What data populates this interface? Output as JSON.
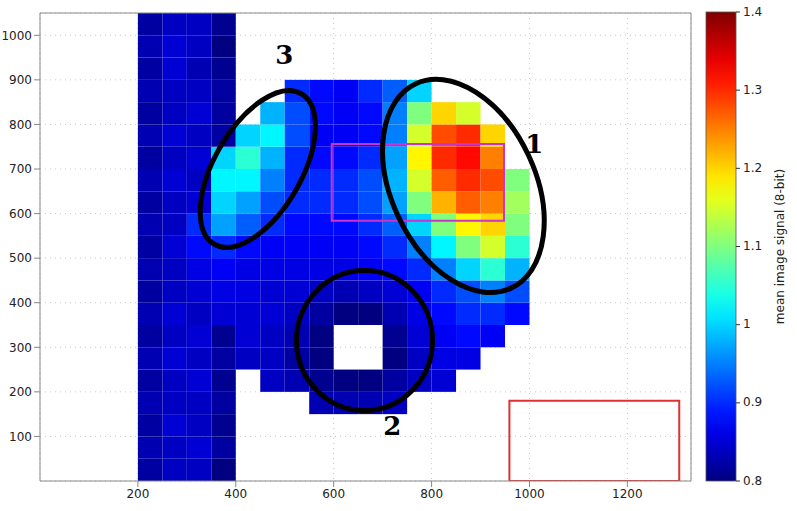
{
  "chart_data": {
    "type": "heatmap",
    "xlim": [
      0,
      1330
    ],
    "ylim": [
      0,
      1050
    ],
    "xticks": [
      200,
      400,
      600,
      800,
      1000,
      1200
    ],
    "yticks": [
      100,
      200,
      300,
      400,
      500,
      600,
      700,
      800,
      900,
      1000
    ],
    "grid": true,
    "tick_labels": true,
    "cells": {
      "x_edges": [
        200,
        250,
        300,
        350,
        400,
        450,
        500,
        550,
        600,
        650,
        700,
        750,
        800,
        850,
        900,
        950,
        1000,
        1050,
        1100
      ],
      "y_edges": [
        0,
        50,
        100,
        150,
        200,
        250,
        300,
        350,
        400,
        450,
        500,
        550,
        600,
        650,
        700,
        750,
        800,
        850,
        900,
        950,
        1000,
        1050
      ],
      "values": [
        [
          0.82,
          0.84,
          0.84,
          0.8,
          null,
          null,
          null,
          null,
          null,
          null,
          null,
          null,
          null,
          null,
          null,
          null,
          null,
          null
        ],
        [
          0.83,
          0.84,
          0.85,
          0.82,
          null,
          null,
          null,
          null,
          null,
          null,
          null,
          null,
          null,
          null,
          null,
          null,
          null,
          null
        ],
        [
          0.82,
          0.85,
          0.84,
          0.81,
          null,
          null,
          null,
          null,
          null,
          null,
          null,
          null,
          null,
          null,
          null,
          null,
          null,
          null
        ],
        [
          0.83,
          0.84,
          0.84,
          0.82,
          null,
          null,
          null,
          0.83,
          0.83,
          0.83,
          0.84,
          null,
          null,
          null,
          null,
          null,
          null,
          null
        ],
        [
          0.82,
          0.84,
          0.85,
          0.81,
          null,
          0.84,
          0.83,
          0.81,
          0.8,
          0.8,
          0.82,
          0.84,
          0.85,
          null,
          null,
          null,
          null,
          null
        ],
        [
          0.83,
          0.85,
          0.84,
          0.82,
          0.84,
          0.84,
          0.82,
          0.8,
          null,
          null,
          0.8,
          0.84,
          0.86,
          0.86,
          null,
          null,
          null,
          null
        ],
        [
          0.82,
          0.84,
          0.85,
          0.81,
          0.85,
          0.84,
          0.83,
          0.8,
          null,
          null,
          0.81,
          0.85,
          0.87,
          0.88,
          0.87,
          null,
          null,
          null
        ],
        [
          0.83,
          0.85,
          0.84,
          0.85,
          0.85,
          0.85,
          0.84,
          0.82,
          0.8,
          0.8,
          0.83,
          0.86,
          0.88,
          0.9,
          0.9,
          0.88,
          null,
          null
        ],
        [
          0.82,
          0.84,
          0.85,
          0.86,
          0.86,
          0.85,
          0.85,
          0.84,
          0.83,
          0.84,
          0.85,
          0.87,
          0.9,
          0.92,
          0.95,
          0.92,
          null,
          null
        ],
        [
          0.83,
          0.84,
          0.86,
          0.87,
          0.86,
          0.86,
          0.86,
          0.86,
          0.86,
          0.87,
          0.88,
          0.9,
          0.95,
          1.0,
          1.05,
          0.98,
          null,
          null
        ],
        [
          0.82,
          0.85,
          0.88,
          0.9,
          0.88,
          0.87,
          0.87,
          0.87,
          0.87,
          0.88,
          0.9,
          0.95,
          1.02,
          1.1,
          1.15,
          1.05,
          null,
          null
        ],
        [
          0.83,
          0.84,
          0.9,
          0.97,
          0.93,
          0.9,
          0.88,
          0.88,
          0.88,
          0.9,
          0.93,
          1.0,
          1.1,
          1.18,
          1.2,
          1.1,
          null,
          null
        ],
        [
          0.82,
          0.84,
          0.85,
          1.0,
          0.97,
          0.92,
          0.9,
          0.9,
          0.9,
          0.92,
          0.97,
          1.1,
          1.22,
          1.27,
          1.25,
          1.12,
          null,
          null
        ],
        [
          0.83,
          0.85,
          0.84,
          1.02,
          1.02,
          0.95,
          0.9,
          0.9,
          0.9,
          0.92,
          0.98,
          1.15,
          1.27,
          1.3,
          1.28,
          1.1,
          null,
          null
        ],
        [
          0.82,
          0.84,
          0.85,
          1.0,
          1.05,
          0.98,
          0.9,
          0.88,
          0.88,
          0.9,
          0.97,
          1.18,
          1.3,
          1.32,
          1.25,
          null,
          null,
          null
        ],
        [
          0.83,
          0.85,
          0.84,
          0.82,
          1.0,
          1.02,
          0.92,
          0.87,
          0.87,
          0.88,
          0.95,
          1.15,
          1.28,
          1.3,
          1.2,
          null,
          null,
          null
        ],
        [
          0.82,
          0.84,
          0.85,
          0.82,
          null,
          0.98,
          0.92,
          0.88,
          0.87,
          0.88,
          0.95,
          1.1,
          1.2,
          1.15,
          null,
          null,
          null,
          null
        ],
        [
          0.83,
          0.84,
          0.84,
          0.82,
          null,
          null,
          0.9,
          0.88,
          0.87,
          0.9,
          0.93,
          1.0,
          null,
          null,
          null,
          null,
          null,
          null
        ],
        [
          0.82,
          0.85,
          0.83,
          0.81,
          null,
          null,
          null,
          null,
          null,
          null,
          null,
          null,
          null,
          null,
          null,
          null,
          null,
          null
        ],
        [
          0.83,
          0.85,
          0.84,
          0.8,
          null,
          null,
          null,
          null,
          null,
          null,
          null,
          null,
          null,
          null,
          null,
          null,
          null,
          null
        ],
        [
          0.82,
          0.84,
          0.84,
          0.81,
          null,
          null,
          null,
          null,
          null,
          null,
          null,
          null,
          null,
          null,
          null,
          null,
          null,
          null
        ]
      ]
    },
    "colorbar": {
      "label": "mean image signal (8-bit)",
      "range": [
        0.8,
        1.4
      ],
      "ticks": [
        0.8,
        0.9,
        1,
        1.1,
        1.2,
        1.3,
        1.4
      ]
    },
    "regions": [
      {
        "label": "1",
        "shape": "ellipse",
        "center": [
          865,
          662
        ],
        "radii": [
          147,
          253
        ],
        "color": "#000000",
        "label_at": [
          1010,
          756
        ]
      },
      {
        "label": "2",
        "shape": "ellipse",
        "center": [
          663,
          315
        ],
        "radii": [
          139,
          157
        ],
        "color": "#000000",
        "label_at": [
          720,
          123
        ]
      },
      {
        "label": "3",
        "shape": "ellipse",
        "center": [
          445,
          700
        ],
        "radii": [
          89,
          195
        ],
        "color": "#000000",
        "label_at": [
          499,
          957
        ]
      }
    ],
    "boxes": [
      {
        "x": [
          596,
          948
        ],
        "y": [
          584,
          756
        ],
        "color": "#cc33cc"
      },
      {
        "x": [
          959,
          1306
        ],
        "y": [
          0,
          180
        ],
        "color": "#e0302f"
      }
    ]
  }
}
